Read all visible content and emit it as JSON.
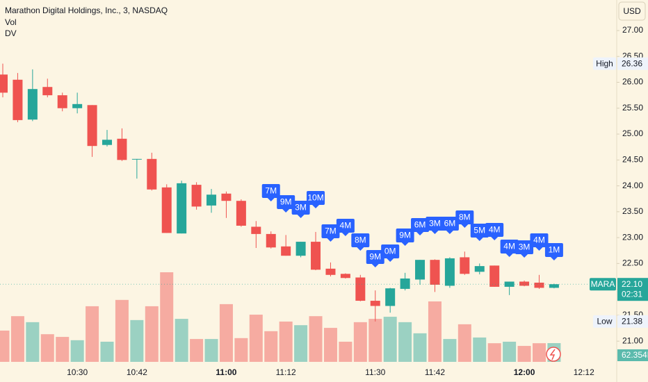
{
  "chart_data": {
    "type": "candlestick",
    "title": "Marathon Digital Holdings, Inc., 3, NASDAQ",
    "indicators": [
      "Vol",
      "DV"
    ],
    "currency": "USD",
    "categories": [
      null,
      null,
      null,
      null,
      null,
      "10:30",
      null,
      null,
      null,
      "10:42",
      null,
      null,
      null,
      null,
      null,
      "11:00",
      null,
      null,
      null,
      "11:12",
      null,
      null,
      null,
      null,
      null,
      "11:30",
      null,
      null,
      null,
      "11:42",
      null,
      null,
      null,
      null,
      null,
      "12:00",
      null,
      null,
      null,
      "12:12"
    ],
    "open": [
      26.15,
      26.05,
      25.28,
      25.91,
      25.75,
      25.5,
      25.56,
      24.79,
      24.91,
      24.51,
      24.52,
      23.97,
      23.08,
      24.02,
      23.62,
      23.85,
      23.71,
      23.21,
      23.07,
      22.83,
      22.65,
      22.92,
      22.4,
      22.3,
      22.23,
      21.78,
      21.68,
      22.01,
      22.19,
      22.57,
      22.07,
      22.62,
      22.34,
      22.46,
      22.05,
      22.15,
      22.13,
      22.03,
      null,
      null
    ],
    "high": [
      26.36,
      26.18,
      26.25,
      26.07,
      25.8,
      25.8,
      25.56,
      25.08,
      25.11,
      24.52,
      24.64,
      24.03,
      24.1,
      24.07,
      23.94,
      23.89,
      23.74,
      23.32,
      23.12,
      23.05,
      22.92,
      23.11,
      22.52,
      22.31,
      22.28,
      21.98,
      22.03,
      22.32,
      22.57,
      22.58,
      22.62,
      22.73,
      22.5,
      22.46,
      22.15,
      22.17,
      22.28,
      22.11,
      null,
      null
    ],
    "low": [
      25.71,
      25.23,
      25.25,
      25.71,
      25.44,
      25.4,
      24.56,
      24.76,
      24.48,
      24.14,
      23.91,
      23.09,
      23.08,
      23.54,
      23.48,
      23.38,
      23.21,
      22.8,
      22.79,
      22.65,
      22.62,
      22.37,
      22.25,
      22.21,
      21.77,
      21.38,
      21.55,
      21.98,
      22.09,
      21.95,
      22.03,
      22.28,
      22.29,
      22.05,
      21.89,
      22.06,
      22.01,
      22.02,
      null,
      null
    ],
    "close": [
      25.8,
      25.27,
      25.87,
      25.75,
      25.5,
      25.58,
      24.77,
      24.89,
      24.5,
      24.52,
      23.93,
      23.09,
      24.05,
      23.6,
      23.83,
      23.71,
      23.23,
      23.07,
      22.81,
      22.65,
      22.92,
      22.38,
      22.28,
      22.22,
      21.78,
      21.68,
      22.02,
      22.21,
      22.57,
      22.09,
      22.6,
      22.3,
      22.45,
      22.05,
      22.15,
      22.07,
      22.03,
      22.1,
      null,
      null
    ],
    "volume": {
      "values": [
        104,
        152,
        132,
        92,
        83,
        72,
        185,
        67,
        206,
        139,
        185,
        298,
        143,
        76,
        76,
        192,
        79,
        157,
        102,
        134,
        122,
        152,
        113,
        67,
        132,
        143,
        150,
        132,
        95,
        201,
        76,
        125,
        81,
        62,
        67,
        53,
        62,
        62.354,
        null,
        null
      ],
      "value_labels": [
        null,
        null,
        null,
        null,
        null,
        null,
        null,
        null,
        null,
        null,
        null,
        null,
        null,
        null,
        null,
        null,
        null,
        null,
        null,
        null,
        null,
        null,
        null,
        null,
        null,
        null,
        null,
        null,
        null,
        null,
        null,
        null,
        null,
        null,
        null,
        null,
        null,
        "62.354K",
        null,
        null
      ]
    },
    "up_color": "#26a69a",
    "down_color": "#ef5350",
    "ylim": [
      20.6,
      27.59
    ],
    "yticks": [
      {
        "value": 21,
        "label": "21.00"
      },
      {
        "value": 21.5,
        "label": "21.50"
      },
      {
        "value": 22,
        "label": "22.00"
      },
      {
        "value": 22.5,
        "label": "22.50"
      },
      {
        "value": 23,
        "label": "23.00"
      },
      {
        "value": 23.5,
        "label": "23.50"
      },
      {
        "value": 24,
        "label": "24.00"
      },
      {
        "value": 24.5,
        "label": "24.50"
      },
      {
        "value": 25,
        "label": "25.00"
      },
      {
        "value": 25.5,
        "label": "25.50"
      },
      {
        "value": 26,
        "label": "26.00"
      },
      {
        "value": 26.5,
        "label": "26.50"
      },
      {
        "value": 27,
        "label": "27.00"
      }
    ],
    "high_label": {
      "label": "High",
      "value": 26.36
    },
    "low_label": {
      "label": "Low",
      "value": 21.38
    },
    "last_label": {
      "label": "MARA",
      "value": 22.1,
      "value_label": "22.10",
      "countdown": "02:31"
    },
    "annotations": [
      "7M",
      "9M",
      "3M",
      "10M",
      "7M",
      "4M",
      "8M",
      "9M",
      "0M",
      "9M",
      "6M",
      "3M",
      "6M",
      "8M",
      "5M",
      "4M",
      "4M",
      "3M",
      "4M",
      "1M"
    ]
  }
}
